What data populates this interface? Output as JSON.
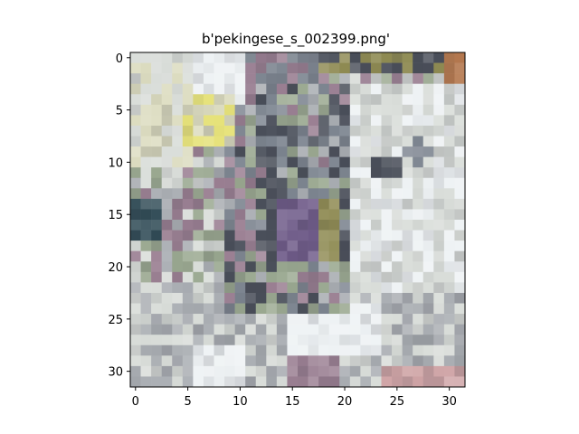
{
  "chart_data": {
    "type": "heatmap",
    "title": "b'pekingese_s_002399.png'",
    "xlabel": "",
    "ylabel": "",
    "xlim": [
      -0.5,
      31.5
    ],
    "ylim": [
      31.5,
      -0.5
    ],
    "xticks": [
      "0",
      "5",
      "10",
      "15",
      "20",
      "25",
      "30"
    ],
    "yticks": [
      "0",
      "5",
      "10",
      "15",
      "20",
      "25",
      "30"
    ],
    "grid": false,
    "image_size": [
      32,
      32
    ],
    "image_content": "low-resolution 32x32 photo rendered as colored pixel grid",
    "palette": {
      "light": "#d8dcd8",
      "white": "#eef2f4",
      "cream": "#dcdcc0",
      "yellow": "#e6e27a",
      "gray": "#a9adb2",
      "slate": "#7d8590",
      "dark": "#4a4f5a",
      "teal": "#2f4a55",
      "purple": "#6e5a88",
      "mauve": "#9a7f92",
      "olive": "#8e8a52",
      "brown": "#9a6a40",
      "sage": "#9aa890",
      "pink": "#cfa4a6",
      "rust": "#b4784e"
    }
  }
}
